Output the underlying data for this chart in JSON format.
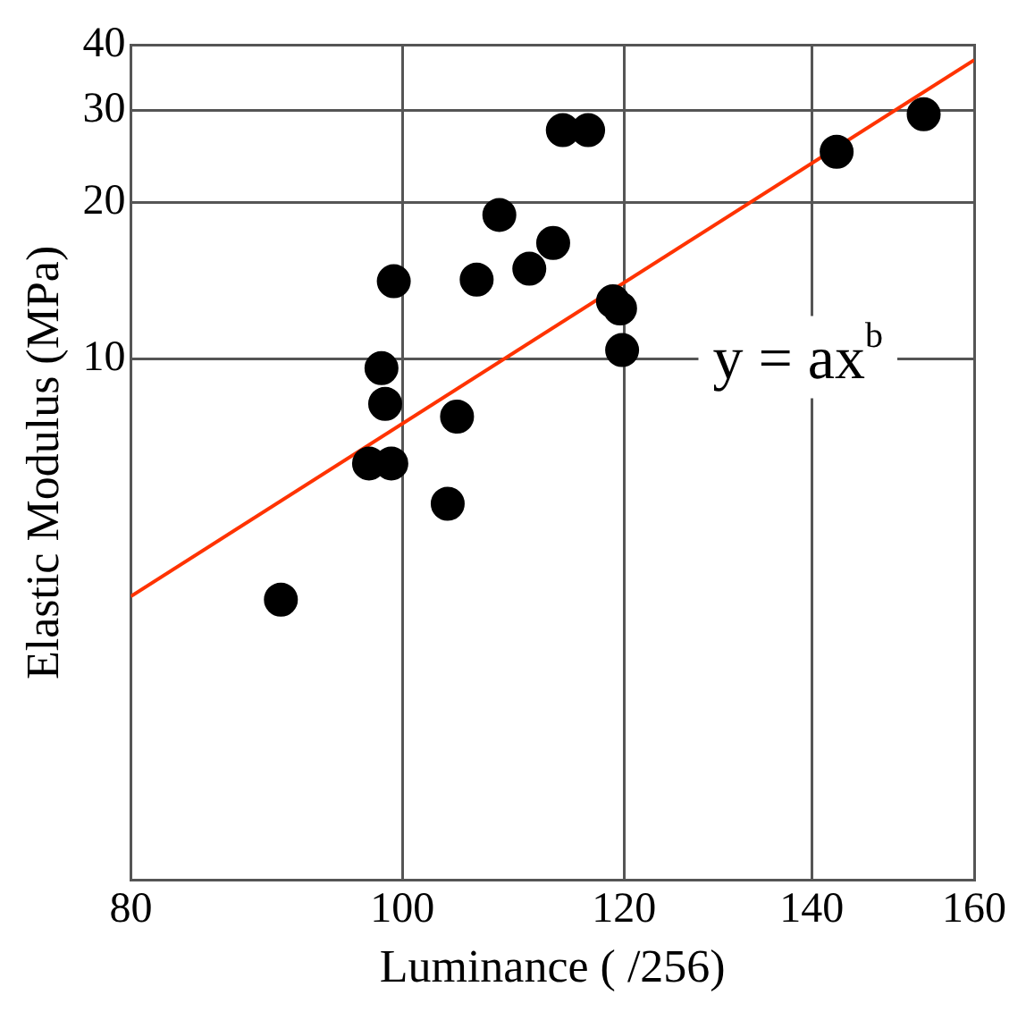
{
  "chart_data": {
    "type": "scatter",
    "xlabel": "Luminance ( /256)",
    "ylabel": "Elastic Modulus (MPa)",
    "log": "xy",
    "xlim": [
      80,
      160
    ],
    "xticks": [
      80,
      100,
      120,
      140,
      160
    ],
    "ylim": [
      1,
      40
    ],
    "yticks": [
      10,
      20,
      30,
      40
    ],
    "grid": true,
    "marker": "circle",
    "annotations": [
      "y = ax$^{b}$"
    ],
    "series": [
      {
        "color": "#000000",
        "x": [
          90.5,
          97.3,
          99.1,
          98.6,
          98.3,
          99.3,
          103.8,
          104.6,
          106.3,
          108.3,
          111.0,
          113.2,
          114.1,
          116.5,
          118.9,
          119.6,
          119.8,
          142.9,
          153.5
        ],
        "values": [
          3.45,
          6.3,
          6.3,
          8.2,
          9.6,
          14.1,
          5.27,
          7.75,
          14.2,
          18.9,
          14.9,
          16.7,
          27.5,
          27.5,
          12.9,
          12.5,
          10.4,
          25,
          29.5
        ]
      },
      {
        "type": "line",
        "color": "#ff3300",
        "marker": "none",
        "x": [
          80,
          160
        ],
        "values": [
          3.5,
          37.5
        ]
      }
    ]
  }
}
